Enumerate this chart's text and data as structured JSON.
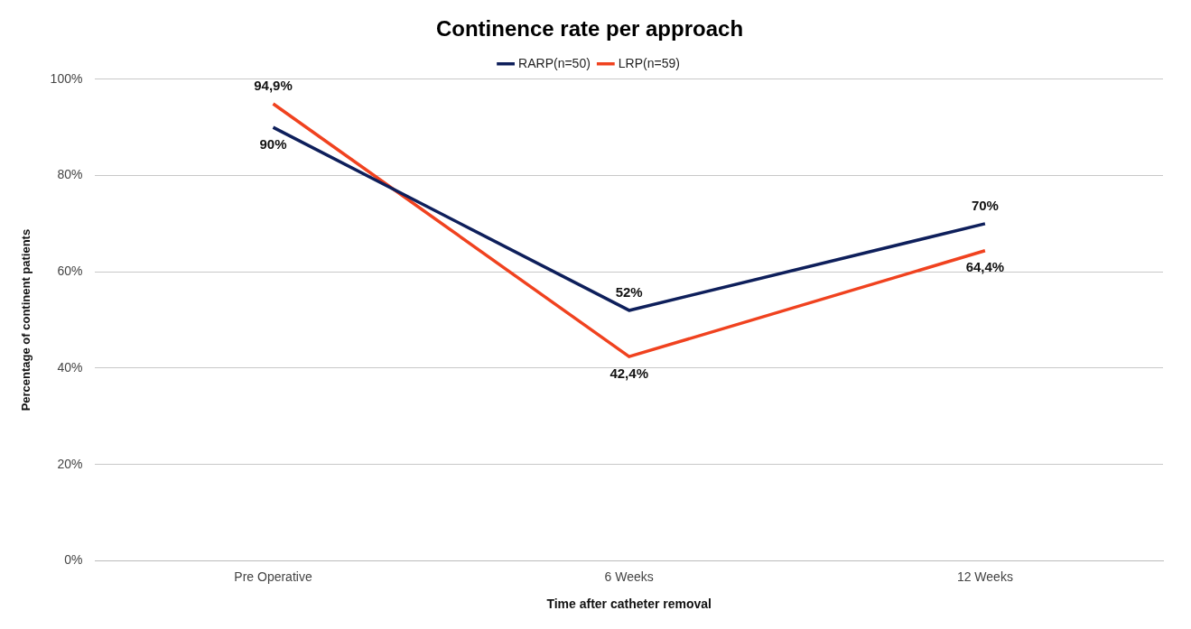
{
  "chart_data": {
    "type": "line",
    "title": "Continence rate per approach",
    "xlabel": "Time after catheter removal",
    "ylabel": "Percentage of continent patients",
    "categories": [
      "Pre Operative",
      "6 Weeks",
      "12 Weeks"
    ],
    "series": [
      {
        "name": "RARP(n=50)",
        "color": "#0e1f5b",
        "values": [
          90,
          52,
          70
        ],
        "value_labels": [
          "90%",
          "52%",
          "70%"
        ]
      },
      {
        "name": "LRP(n=59)",
        "color": "#f0421f",
        "values": [
          94.9,
          42.4,
          64.4
        ],
        "value_labels": [
          "94,9%",
          "42,4%",
          "64,4%"
        ]
      }
    ],
    "ylim": [
      0,
      100
    ],
    "yticks": [
      {
        "value": 0,
        "label": "0%"
      },
      {
        "value": 20,
        "label": "20%"
      },
      {
        "value": 40,
        "label": "40%"
      },
      {
        "value": 60,
        "label": "60%"
      },
      {
        "value": 80,
        "label": "80%"
      },
      {
        "value": 100,
        "label": "100%"
      }
    ],
    "grid": "y",
    "legend": "top",
    "marker": "none",
    "line_style": "solid"
  }
}
